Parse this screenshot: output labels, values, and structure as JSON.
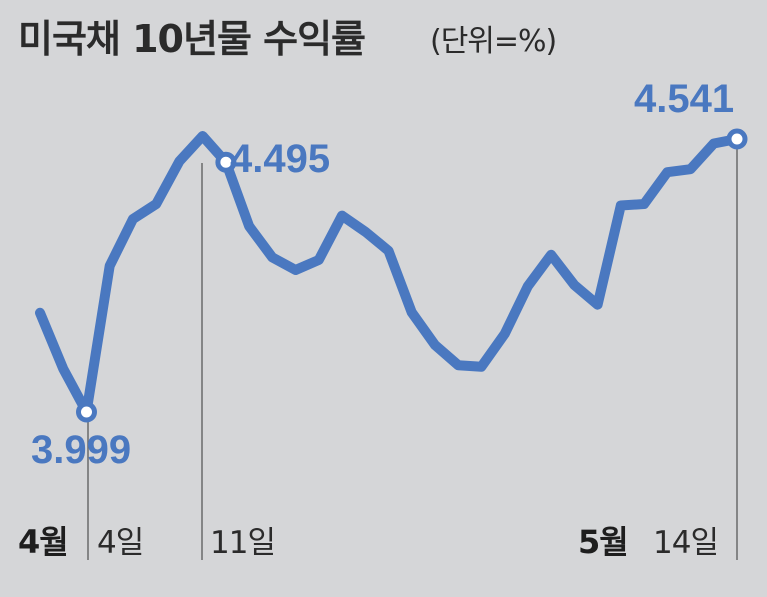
{
  "chart_data": {
    "type": "line",
    "title": "미국채 10년물 수익률",
    "unit": "(단위=%)",
    "color": "#4a78c0",
    "series": [
      {
        "values": [
          4.196,
          4.085,
          3.999,
          4.289,
          4.382,
          4.412,
          4.497,
          4.547,
          4.495,
          4.368,
          4.306,
          4.281,
          4.301,
          4.389,
          4.357,
          4.319,
          4.197,
          4.132,
          4.092,
          4.089,
          4.154,
          4.249,
          4.311,
          4.251,
          4.212,
          4.409,
          4.412,
          4.475,
          4.481,
          4.532,
          4.541
        ]
      }
    ],
    "highlights": [
      {
        "index": 2,
        "label": "3.999"
      },
      {
        "index": 8,
        "label": "4.495"
      },
      {
        "index": 30,
        "label": "4.541"
      }
    ],
    "x_labels": {
      "start": {
        "month": "4월",
        "day": "4일"
      },
      "mid": {
        "day": "11일"
      },
      "end": {
        "month": "5월",
        "day": "14일"
      }
    }
  }
}
